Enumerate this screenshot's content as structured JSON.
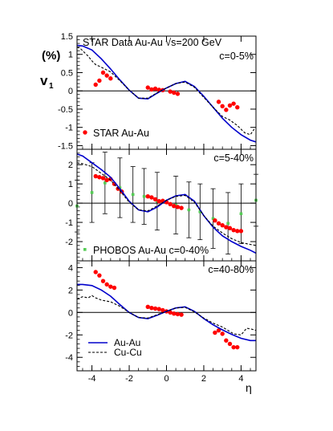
{
  "header": {
    "title": "STAR Data  Au-Au  √s=200 GeV",
    "ylabel_unit": "(%)",
    "ylabel": "v",
    "ylabel_sub": "1",
    "xlabel": "η"
  },
  "chart_data": [
    {
      "type": "line",
      "centrality_label": "c=0-5%",
      "xlim": [
        -4.8,
        4.8
      ],
      "ylim": [
        -1.6,
        1.5
      ],
      "yticks": [
        -1.5,
        -1,
        -0.5,
        0,
        0.5,
        1,
        1.5
      ],
      "yticklabels": [
        "-1.5",
        "-1",
        "-0.5",
        "0",
        "0.5",
        "1",
        "1.5"
      ],
      "legend_text": "STAR  Au-Au",
      "series": [
        {
          "name": "STAR  Au-Au",
          "style": "markers",
          "color": "#ff0000",
          "x": [
            -3.8,
            -3.6,
            -3.4,
            -3.2,
            -3.0,
            -1.0,
            -0.8,
            -0.6,
            -0.4,
            -0.2,
            0.2,
            0.4,
            0.6,
            2.8,
            3.0,
            3.2,
            3.4,
            3.6,
            3.8
          ],
          "y": [
            0.17,
            0.28,
            0.5,
            0.42,
            0.34,
            0.09,
            0.04,
            0.06,
            0.03,
            0.02,
            -0.02,
            -0.05,
            -0.08,
            -0.3,
            -0.42,
            -0.52,
            -0.4,
            -0.35,
            -0.45
          ]
        },
        {
          "name": "",
          "style": "solid",
          "color": "#0000cc",
          "x": [
            -4.8,
            -4.5,
            -4.0,
            -3.5,
            -3.0,
            -2.5,
            -2.0,
            -1.5,
            -1.0,
            -0.5,
            0,
            0.5,
            1.0,
            1.5,
            2.0,
            2.5,
            3.0,
            3.5,
            4.0,
            4.5,
            4.8
          ],
          "y": [
            1.25,
            1.23,
            1.12,
            0.88,
            0.6,
            0.3,
            0.02,
            -0.2,
            -0.22,
            -0.06,
            0.08,
            0.2,
            0.26,
            0.12,
            -0.15,
            -0.45,
            -0.75,
            -1.0,
            -1.2,
            -1.35,
            -1.4
          ]
        },
        {
          "name": "",
          "style": "dashed",
          "color": "#000000",
          "x": [
            -4.8,
            -4.6,
            -4.4,
            -4.2,
            -4.0,
            -3.8,
            -3.5,
            -3.0,
            -2.5,
            -2.0,
            -1.5,
            -1.0,
            -0.5,
            0,
            0.5,
            1.0,
            1.5,
            2.0,
            2.5,
            3.0,
            3.4,
            3.8,
            4.0,
            4.2,
            4.5,
            4.7
          ],
          "y": [
            1.2,
            1.15,
            1.05,
            0.95,
            0.82,
            0.72,
            0.65,
            0.52,
            0.28,
            0.02,
            -0.2,
            -0.2,
            -0.05,
            0.08,
            0.2,
            0.24,
            0.1,
            -0.18,
            -0.45,
            -0.7,
            -0.8,
            -0.95,
            -1.05,
            -1.15,
            -1.2,
            -1.05
          ]
        }
      ]
    },
    {
      "type": "line",
      "centrality_label": "c=5-40%",
      "xlim": [
        -4.8,
        4.8
      ],
      "ylim": [
        -3.0,
        2.8
      ],
      "yticks": [
        -2,
        -1,
        0,
        1,
        2
      ],
      "yticklabels": [
        "-2",
        "-1",
        "0",
        "1",
        "2"
      ],
      "legend_text": "PHOBOS  Au-Au  c=0-40%",
      "series": [
        {
          "name": "PHOBOS  Au-Au  c=0-40%",
          "style": "markers-errorbars",
          "color": "#55cc55",
          "x": [
            -4.8,
            -4.0,
            -3.3,
            -2.5,
            -1.8,
            -1.2,
            -0.5,
            0.5,
            1.2,
            1.8,
            2.5,
            3.3,
            4.0,
            4.8
          ],
          "y": [
            -0.15,
            0.55,
            1.05,
            0.8,
            0.45,
            0.35,
            0.1,
            -0.1,
            -0.35,
            -0.45,
            -0.8,
            -1.05,
            -0.55,
            0.15
          ],
          "err": [
            1.35,
            1.55,
            1.6,
            1.55,
            1.45,
            1.45,
            1.5,
            1.5,
            1.45,
            1.45,
            1.55,
            1.6,
            1.55,
            1.35
          ]
        },
        {
          "name": "",
          "style": "markers",
          "color": "#ff0000",
          "x": [
            -3.8,
            -3.6,
            -3.4,
            -3.2,
            -3.0,
            -2.8,
            -2.6,
            -2.4,
            -1.0,
            -0.8,
            -0.6,
            -0.4,
            -0.2,
            0,
            0.2,
            0.4,
            0.6,
            0.8,
            2.6,
            2.8,
            3.0,
            3.2,
            3.4,
            3.6,
            3.8,
            4.0
          ],
          "y": [
            1.4,
            1.35,
            1.3,
            1.2,
            1.25,
            1.0,
            0.75,
            0.6,
            0.35,
            0.3,
            0.2,
            0.1,
            0.12,
            0.05,
            -0.05,
            -0.15,
            -0.2,
            -0.25,
            -0.9,
            -1.05,
            -1.15,
            -1.25,
            -1.3,
            -1.4,
            -1.45,
            -1.45
          ]
        },
        {
          "name": "",
          "style": "solid",
          "color": "#0000cc",
          "x": [
            -4.8,
            -4.5,
            -4.0,
            -3.5,
            -3.0,
            -2.5,
            -2.0,
            -1.5,
            -1.0,
            -0.5,
            0,
            0.5,
            1.0,
            1.5,
            2.0,
            2.5,
            3.0,
            3.5,
            4.0,
            4.5,
            4.8
          ],
          "y": [
            2.55,
            2.45,
            2.1,
            1.75,
            1.35,
            0.75,
            0.1,
            -0.35,
            -0.45,
            -0.2,
            0.15,
            0.38,
            0.45,
            0.1,
            -0.65,
            -1.25,
            -1.7,
            -2.0,
            -2.25,
            -2.45,
            -2.6
          ]
        },
        {
          "name": "",
          "style": "dashed",
          "color": "#000000",
          "x": [
            -4.8,
            -4.5,
            -4.0,
            -3.5,
            -3.0,
            -2.5,
            -2.0,
            -1.5,
            -1.0,
            -0.5,
            0,
            0.5,
            1.0,
            1.5,
            2.0,
            2.5,
            3.0,
            3.5,
            4.0,
            4.5,
            4.8
          ],
          "y": [
            2.1,
            2.05,
            1.9,
            1.55,
            1.2,
            0.65,
            0.05,
            -0.35,
            -0.4,
            -0.15,
            0.15,
            0.35,
            0.4,
            0.05,
            -0.65,
            -1.2,
            -1.55,
            -1.85,
            -2.05,
            -2.15,
            -2.2
          ]
        }
      ]
    },
    {
      "type": "line",
      "centrality_label": "c=40-80%",
      "xlim": [
        -4.8,
        4.8
      ],
      "ylim": [
        -5.2,
        4.6
      ],
      "yticks": [
        -4,
        -2,
        0,
        2,
        4
      ],
      "yticklabels": [
        "-4",
        "-2",
        "0",
        "2",
        "4"
      ],
      "legend": [
        {
          "label": "Au-Au",
          "style": "solid",
          "color": "#0000cc"
        },
        {
          "label": "Cu-Cu",
          "style": "dashed",
          "color": "#000000"
        }
      ],
      "series": [
        {
          "name": "",
          "style": "markers",
          "color": "#ff0000",
          "x": [
            -3.8,
            -3.6,
            -3.4,
            -3.2,
            -3.0,
            -2.8,
            -1.0,
            -0.8,
            -0.6,
            -0.4,
            -0.2,
            0,
            0.2,
            0.4,
            0.6,
            0.8,
            2.6,
            2.8,
            3.0,
            3.2,
            3.4,
            3.6,
            3.8
          ],
          "y": [
            3.6,
            3.3,
            2.8,
            2.5,
            2.3,
            2.2,
            0.5,
            0.4,
            0.35,
            0.3,
            0.2,
            0.1,
            0.0,
            -0.1,
            -0.15,
            -0.2,
            -1.8,
            -1.6,
            -1.9,
            -2.5,
            -2.8,
            -3.1,
            -3.1
          ]
        },
        {
          "name": "Au-Au",
          "style": "solid",
          "color": "#0000cc",
          "x": [
            -4.8,
            -4.5,
            -4.0,
            -3.5,
            -3.0,
            -2.5,
            -2.0,
            -1.5,
            -1.0,
            -0.5,
            0,
            0.5,
            1.0,
            1.5,
            2.0,
            2.5,
            3.0,
            3.5,
            4.0,
            4.5,
            4.8
          ],
          "y": [
            2.5,
            2.5,
            2.4,
            2.0,
            1.45,
            0.7,
            0.0,
            -0.45,
            -0.55,
            -0.25,
            0.1,
            0.4,
            0.5,
            0.1,
            -0.55,
            -1.1,
            -1.55,
            -1.95,
            -2.3,
            -2.5,
            -2.5
          ]
        },
        {
          "name": "Cu-Cu",
          "style": "dashed",
          "color": "#000000",
          "x": [
            -4.8,
            -4.5,
            -4.2,
            -4.0,
            -3.8,
            -3.5,
            -3.0,
            -2.5,
            -2.0,
            -1.5,
            -1.0,
            -0.5,
            0,
            0.5,
            1.0,
            1.5,
            2.0,
            2.5,
            3.0,
            3.3,
            3.6,
            4.0,
            4.3,
            4.6,
            4.8
          ],
          "y": [
            1.2,
            1.4,
            1.3,
            1.5,
            1.3,
            1.1,
            0.95,
            0.55,
            0.0,
            -0.45,
            -0.5,
            -0.2,
            0.1,
            0.4,
            0.45,
            0.05,
            -0.5,
            -0.95,
            -1.3,
            -1.6,
            -1.9,
            -2.0,
            -1.4,
            -1.5,
            -1.6
          ]
        }
      ]
    }
  ],
  "x_axis": {
    "ticks": [
      -4,
      -2,
      0,
      2,
      4
    ],
    "ticklabels": [
      "-4",
      "-2",
      "0",
      "2",
      "4"
    ]
  }
}
